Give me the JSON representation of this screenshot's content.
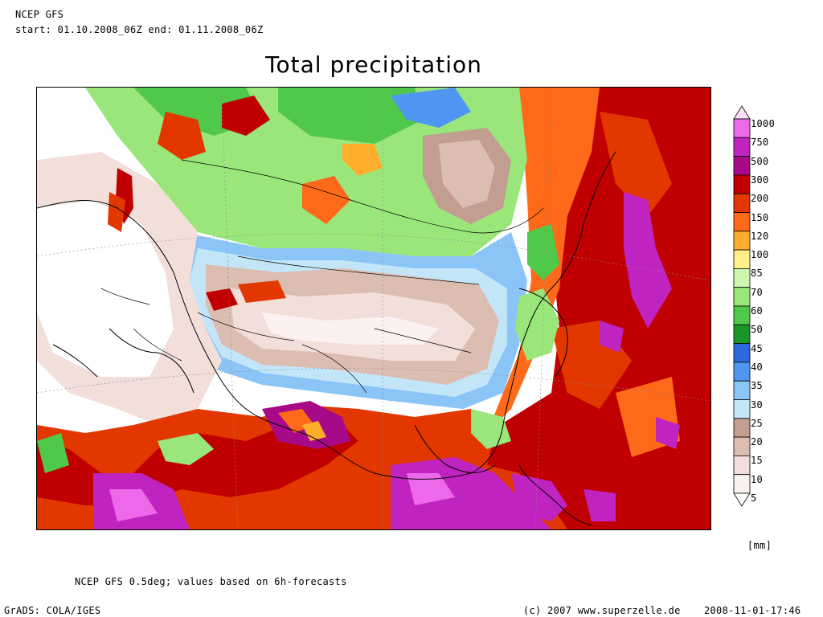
{
  "header": {
    "model": "NCEP GFS",
    "period": "start: 01.10.2008_06Z end: 01.11.2008_06Z"
  },
  "title": "Total precipitation",
  "map": {
    "region": "Asia",
    "fill_note": "precipitation accumulation contours over Asia"
  },
  "legend": {
    "units": "[mm]",
    "levels": [
      "1000",
      "750",
      "500",
      "300",
      "200",
      "150",
      "120",
      "100",
      "85",
      "70",
      "60",
      "50",
      "45",
      "40",
      "35",
      "30",
      "25",
      "20",
      "15",
      "10",
      "5"
    ],
    "colors": [
      "#fbe2f8",
      "#ee68ea",
      "#c024c0",
      "#a70a88",
      "#c00000",
      "#e23800",
      "#ff6a1a",
      "#ffad2d",
      "#fff08a",
      "#ccf6b0",
      "#9ae67a",
      "#50c84a",
      "#199628",
      "#2f68da",
      "#4f96f2",
      "#8bc4f7",
      "#c2e6f8",
      "#c29e90",
      "#dcbdb2",
      "#f2dfda",
      "#fbf1ee",
      "#ffffff"
    ]
  },
  "footer": {
    "note": "NCEP GFS 0.5deg; values based on 6h-forecasts",
    "software": "GrADS: COLA/IGES",
    "credit": "(c) 2007 www.superzelle.de",
    "timestamp": "2008-11-01-17:46"
  }
}
